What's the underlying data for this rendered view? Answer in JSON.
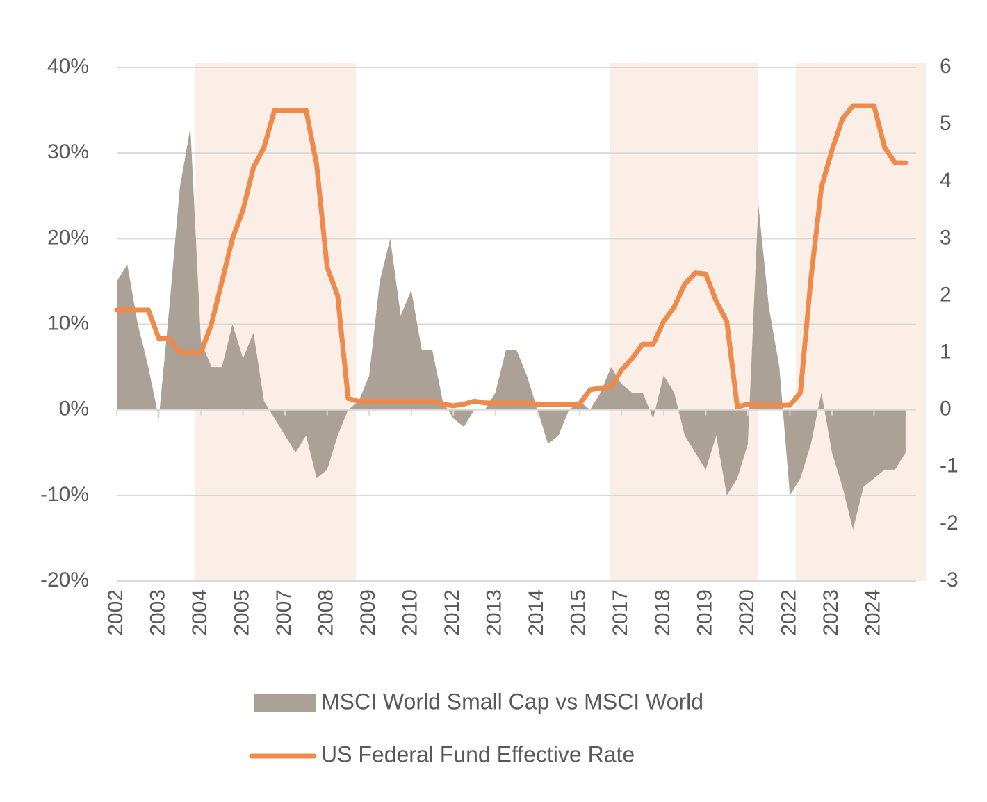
{
  "chart_data": {
    "type": "line",
    "categories": [
      "2002",
      null,
      null,
      null,
      "2003",
      null,
      null,
      null,
      "2004",
      null,
      null,
      null,
      "2005",
      null,
      null,
      null,
      "2007",
      null,
      null,
      null,
      "2008",
      null,
      null,
      null,
      "2009",
      null,
      null,
      null,
      "2010",
      null,
      null,
      null,
      "2012",
      null,
      null,
      null,
      "2013",
      null,
      null,
      null,
      "2014",
      null,
      null,
      null,
      "2015",
      null,
      null,
      null,
      "2017",
      null,
      null,
      null,
      "2018",
      null,
      null,
      null,
      "2019",
      null,
      null,
      null,
      "2020",
      null,
      null,
      null,
      "2022",
      null,
      null,
      null,
      "2023",
      null,
      null,
      null,
      "2024",
      null,
      null,
      null
    ],
    "series": [
      {
        "name": "MSCI World Small Cap vs MSCI World",
        "type": "area",
        "color": "#aba197",
        "values": [
          15,
          17,
          10,
          5,
          -1,
          12,
          26,
          33,
          8,
          5,
          5,
          10,
          6,
          9,
          1,
          -1,
          -3,
          -5,
          -3,
          -8,
          -7,
          -3,
          0,
          1,
          4,
          15,
          20,
          11,
          14,
          7,
          7,
          1,
          -1,
          -2,
          0,
          0,
          2,
          7,
          7,
          4,
          0,
          -4,
          -3,
          0,
          1,
          0,
          2,
          5,
          3,
          2,
          2,
          -1,
          4,
          2,
          -3,
          -5,
          -7,
          -3,
          -10,
          -8,
          -4,
          24,
          12,
          5,
          -10,
          -8,
          -4,
          2,
          -5,
          -9,
          -14,
          -9,
          -8,
          -7,
          -7,
          -5
        ]
      },
      {
        "name": "US Federal Fund Effective Rate",
        "type": "line",
        "axis": "y2",
        "color": "#ed8a4c",
        "values": [
          1.75,
          1.75,
          1.75,
          1.75,
          1.25,
          1.25,
          1.0,
          1.0,
          1.0,
          1.5,
          2.25,
          3.0,
          3.5,
          4.25,
          4.6,
          5.25,
          5.25,
          5.25,
          5.25,
          4.3,
          2.5,
          2.0,
          0.2,
          0.15,
          0.15,
          0.15,
          0.15,
          0.15,
          0.15,
          0.15,
          0.15,
          0.1,
          0.07,
          0.1,
          0.15,
          0.12,
          0.12,
          0.12,
          0.12,
          0.12,
          0.1,
          0.1,
          0.1,
          0.1,
          0.1,
          0.35,
          0.38,
          0.4,
          0.7,
          0.9,
          1.15,
          1.15,
          1.55,
          1.8,
          2.2,
          2.4,
          2.38,
          1.9,
          1.55,
          0.05,
          0.1,
          0.08,
          0.08,
          0.08,
          0.08,
          0.3,
          2.3,
          3.9,
          4.55,
          5.1,
          5.33,
          5.33,
          5.33,
          4.6,
          4.33,
          4.33
        ]
      }
    ],
    "ylim": [
      -20,
      40
    ],
    "yticks": [
      {
        "value": -20,
        "label": "-20%"
      },
      {
        "value": -10,
        "label": "-10%"
      },
      {
        "value": 0,
        "label": "0%"
      },
      {
        "value": 10,
        "label": "10%"
      },
      {
        "value": 20,
        "label": "20%"
      },
      {
        "value": 30,
        "label": "30%"
      },
      {
        "value": 40,
        "label": "40%"
      }
    ],
    "y2lim": [
      -3,
      6
    ],
    "y2ticks": [
      -3,
      -2,
      -1,
      0,
      1,
      2,
      3,
      4,
      5,
      6
    ],
    "grid": true,
    "legend": "bottom"
  }
}
